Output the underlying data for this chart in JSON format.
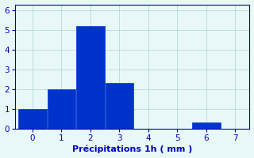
{
  "bins": [
    -0.5,
    0.5,
    1.5,
    2.5,
    3.5,
    4.5,
    5.5,
    6.5,
    7.5
  ],
  "bar_centers": [
    0,
    1,
    2,
    3,
    4,
    5,
    6,
    7
  ],
  "values": [
    1,
    2,
    5.2,
    2.3,
    0,
    0,
    0.3,
    0
  ],
  "bar_color": "#0033cc",
  "bar_edge_color": "#0033cc",
  "background_color": "#e8f8f8",
  "xlabel": "Précipitations 1h ( mm )",
  "xlabel_color": "#0000bb",
  "tick_color": "#0000bb",
  "grid_color": "#b0d0d0",
  "xlim": [
    -0.6,
    7.5
  ],
  "ylim": [
    0,
    6.3
  ],
  "yticks": [
    0,
    1,
    2,
    3,
    4,
    5,
    6
  ],
  "xticks": [
    0,
    1,
    2,
    3,
    4,
    5,
    6,
    7
  ],
  "xlabel_fontsize": 8,
  "tick_fontsize": 7.5
}
